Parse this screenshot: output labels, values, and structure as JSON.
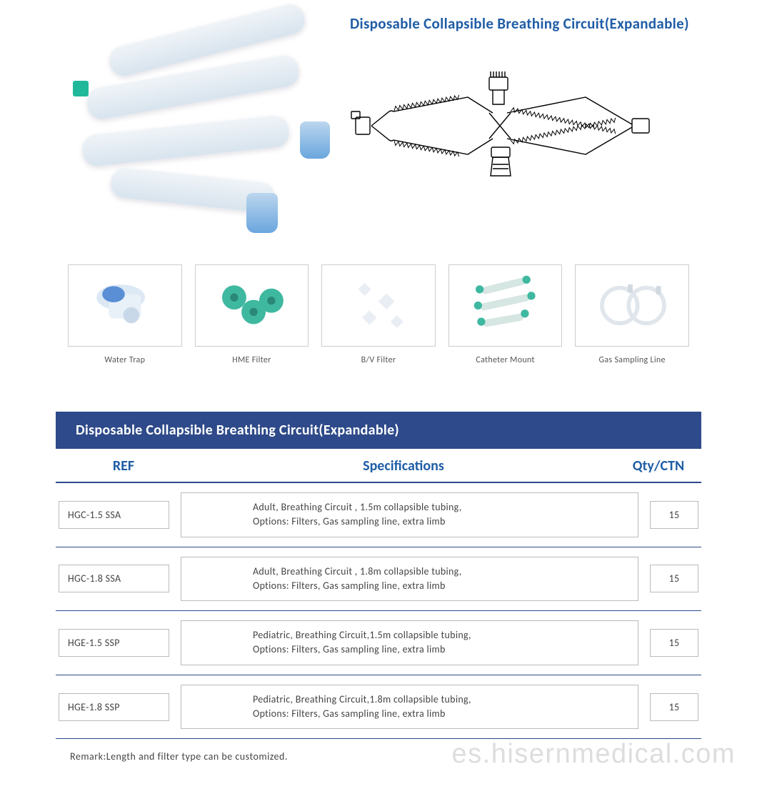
{
  "title": "Disposable Collapsible Breathing Circuit(Expandable)",
  "title_color": "#1f5da6",
  "title_fontsize": 21,
  "thumbnails": [
    {
      "label": "Water Trap"
    },
    {
      "label": "HME Filter"
    },
    {
      "label": "B/V Filter"
    },
    {
      "label": "Catheter Mount"
    },
    {
      "label": "Gas Sampling Line"
    }
  ],
  "thumbnail_border_color": "#cccccc",
  "thumbnail_label_fontsize": 12,
  "table": {
    "banner": "Disposable Collapsible Breathing Circuit(Expandable)",
    "banner_bg": "#2e4a8a",
    "banner_color": "#ffffff",
    "columns": {
      "ref": "REF",
      "spec": "Specifications",
      "qty": "Qty/CTN"
    },
    "column_color": "#1f5da6",
    "column_fontsize": 20,
    "row_border_color": "#2e4a8a",
    "cell_border_color": "#bbbbbb",
    "cell_fontsize": 14,
    "rows": [
      {
        "ref": "HGC-1.5 SSA",
        "spec": "Adult, Breathing Circuit , 1.5m collapsible tubing,\nOptions: Filters, Gas sampling line, extra limb",
        "qty": "15"
      },
      {
        "ref": "HGC-1.8 SSA",
        "spec": "Adult, Breathing Circuit , 1.8m collapsible tubing,\nOptions: Filters, Gas sampling line, extra limb",
        "qty": "15"
      },
      {
        "ref": "HGE-1.5 SSP",
        "spec": "Pediatric, Breathing Circuit,1.5m collapsible tubing,\nOptions: Filters, Gas sampling line, extra limb",
        "qty": "15"
      },
      {
        "ref": "HGE-1.8 SSP",
        "spec": "Pediatric, Breathing Circuit,1.8m collapsible tubing,\nOptions: Filters, Gas sampling line, extra limb",
        "qty": "15"
      }
    ],
    "remark": "Remark:Length and filter type can be customized."
  },
  "watermark": "es.hisernmedical.com",
  "watermark_color": "rgba(100,100,100,0.22)",
  "diagram": {
    "stroke": "#000000",
    "stroke_width": 1.4,
    "background": "#ffffff"
  },
  "accent_colors": {
    "teal": "#1fb89a",
    "blue": "#6aa6de",
    "light": "#e8f0f6"
  }
}
